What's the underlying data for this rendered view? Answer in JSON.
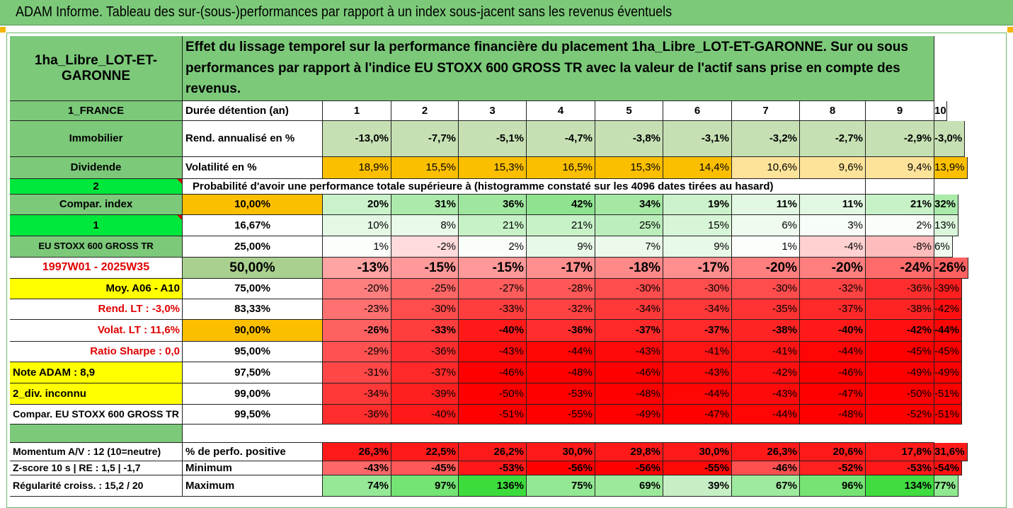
{
  "title": "ADAM Informe. Tableau des sur-(sous-)performances par rapport à un index sous-jacent sans les revenus éventuels",
  "asset_name": "1ha_Libre_LOT-ET-GARONNE",
  "description": "Effet du lissage temporel sur la performance financière du placement 1ha_Libre_LOT-ET-GARONNE. Sur ou sous performances par rapport à l'indice EU STOXX 600 GROSS TR avec la valeur de l'actif sans prise en compte des revenus.",
  "probability_caption": "Probabilité d'avoir une performance totale supérieure à (histogramme constaté sur les 4096 dates tirées au hasard)",
  "left_labels": [
    "1_FRANCE",
    "Immobilier",
    "Dividende",
    "2",
    "Compar. index",
    "1",
    "EU STOXX 600 GROSS TR",
    "1997W01 - 2025W35",
    "Moy. A06 - A10",
    "Rend. LT :   -3,0%",
    "Volat. LT :   11,6%",
    "Ratio Sharpe :   0,0",
    "Note ADAM : 8,9",
    "2_div. inconnu",
    "Compar. EU STOXX 600 GROSS TR"
  ],
  "header_row": {
    "label": "Durée détention (an)",
    "years": [
      "1",
      "2",
      "3",
      "4",
      "5",
      "6",
      "7",
      "8",
      "9",
      "10"
    ]
  },
  "rend_row": {
    "label": "Rend. annualisé en %",
    "values": [
      "-13,0%",
      "-7,7%",
      "-5,1%",
      "-4,7%",
      "-3,8%",
      "-3,1%",
      "-3,2%",
      "-2,7%",
      "-2,9%",
      "-3,0%"
    ]
  },
  "vol_row": {
    "label": "Volatilité en %",
    "values": [
      "18,9%",
      "15,5%",
      "15,3%",
      "16,5%",
      "15,3%",
      "14,4%",
      "10,6%",
      "9,6%",
      "9,4%",
      "13,9%"
    ]
  },
  "prob_rows": [
    {
      "pct": "10,00%",
      "values": [
        "20%",
        "31%",
        "36%",
        "42%",
        "34%",
        "19%",
        "11%",
        "11%",
        "21%",
        "32%"
      ],
      "n": [
        20,
        31,
        36,
        42,
        34,
        19,
        11,
        11,
        21,
        32
      ]
    },
    {
      "pct": "16,67%",
      "values": [
        "10%",
        "8%",
        "21%",
        "21%",
        "25%",
        "15%",
        "6%",
        "3%",
        "2%",
        "13%"
      ],
      "n": [
        10,
        8,
        21,
        21,
        25,
        15,
        6,
        3,
        2,
        13
      ]
    },
    {
      "pct": "25,00%",
      "values": [
        "1%",
        "-2%",
        "2%",
        "9%",
        "7%",
        "9%",
        "1%",
        "-4%",
        "-8%",
        "6%"
      ],
      "n": [
        1,
        -2,
        2,
        9,
        7,
        9,
        1,
        -4,
        -8,
        6
      ]
    },
    {
      "pct": "50,00%",
      "values": [
        "-13%",
        "-15%",
        "-15%",
        "-17%",
        "-18%",
        "-17%",
        "-20%",
        "-20%",
        "-24%",
        "-26%"
      ],
      "n": [
        -13,
        -15,
        -15,
        -17,
        -18,
        -17,
        -20,
        -20,
        -24,
        -26
      ]
    },
    {
      "pct": "75,00%",
      "values": [
        "-20%",
        "-25%",
        "-27%",
        "-28%",
        "-30%",
        "-30%",
        "-30%",
        "-32%",
        "-36%",
        "-39%"
      ],
      "n": [
        -20,
        -25,
        -27,
        -28,
        -30,
        -30,
        -30,
        -32,
        -36,
        -39
      ]
    },
    {
      "pct": "83,33%",
      "values": [
        "-23%",
        "-30%",
        "-33%",
        "-32%",
        "-34%",
        "-34%",
        "-35%",
        "-37%",
        "-38%",
        "-42%"
      ],
      "n": [
        -23,
        -30,
        -33,
        -32,
        -34,
        -34,
        -35,
        -37,
        -38,
        -42
      ]
    },
    {
      "pct": "90,00%",
      "values": [
        "-26%",
        "-33%",
        "-40%",
        "-36%",
        "-37%",
        "-37%",
        "-38%",
        "-40%",
        "-42%",
        "-44%"
      ],
      "n": [
        -26,
        -33,
        -40,
        -36,
        -37,
        -37,
        -38,
        -40,
        -42,
        -44
      ]
    },
    {
      "pct": "95,00%",
      "values": [
        "-29%",
        "-36%",
        "-43%",
        "-44%",
        "-43%",
        "-41%",
        "-41%",
        "-44%",
        "-45%",
        "-45%"
      ],
      "n": [
        -29,
        -36,
        -43,
        -44,
        -43,
        -41,
        -41,
        -44,
        -45,
        -45
      ]
    },
    {
      "pct": "97,50%",
      "values": [
        "-31%",
        "-37%",
        "-46%",
        "-48%",
        "-46%",
        "-43%",
        "-42%",
        "-46%",
        "-49%",
        "-49%"
      ],
      "n": [
        -31,
        -37,
        -46,
        -48,
        -46,
        -43,
        -42,
        -46,
        -49,
        -49
      ]
    },
    {
      "pct": "99,00%",
      "values": [
        "-34%",
        "-39%",
        "-50%",
        "-53%",
        "-48%",
        "-44%",
        "-43%",
        "-47%",
        "-50%",
        "-51%"
      ],
      "n": [
        -34,
        -39,
        -50,
        -53,
        -48,
        -44,
        -43,
        -47,
        -50,
        -51
      ]
    },
    {
      "pct": "99,50%",
      "values": [
        "-36%",
        "-40%",
        "-51%",
        "-55%",
        "-49%",
        "-47%",
        "-44%",
        "-48%",
        "-52%",
        "-51%"
      ],
      "n": [
        -36,
        -40,
        -51,
        -55,
        -49,
        -47,
        -44,
        -48,
        -52,
        -51
      ]
    }
  ],
  "bottom_rows": [
    {
      "left": "Momentum A/V : 12 (10=neutre)",
      "label": "% de perfo. positive",
      "values": [
        "26,3%",
        "22,5%",
        "26,2%",
        "30,0%",
        "29,8%",
        "30,0%",
        "26,3%",
        "20,6%",
        "17,8%",
        "31,6%"
      ]
    },
    {
      "left": "Z-score 10 s  |  RE : 1,5  |  -1,7",
      "label": "Minimum",
      "values": [
        "-43%",
        "-45%",
        "-53%",
        "-56%",
        "-56%",
        "-55%",
        "-46%",
        "-52%",
        "-53%",
        "-54%"
      ],
      "n": [
        -43,
        -45,
        -53,
        -56,
        -56,
        -55,
        -46,
        -52,
        -53,
        -54
      ]
    },
    {
      "left": "Régularité croiss. : 15,2 / 20",
      "label": "Maximum",
      "values": [
        "74%",
        "97%",
        "136%",
        "75%",
        "69%",
        "39%",
        "67%",
        "96%",
        "134%",
        "77%"
      ],
      "n": [
        74,
        97,
        136,
        75,
        69,
        39,
        67,
        96,
        134,
        77
      ]
    }
  ],
  "colors": {
    "green": "#7cc97a",
    "light_green": "#c6e0b4",
    "orange": "#fcbf00",
    "yellow": "#ffff00",
    "bright_green": "#00e83c",
    "red": "#ff0000",
    "label_red": "#e00000"
  }
}
